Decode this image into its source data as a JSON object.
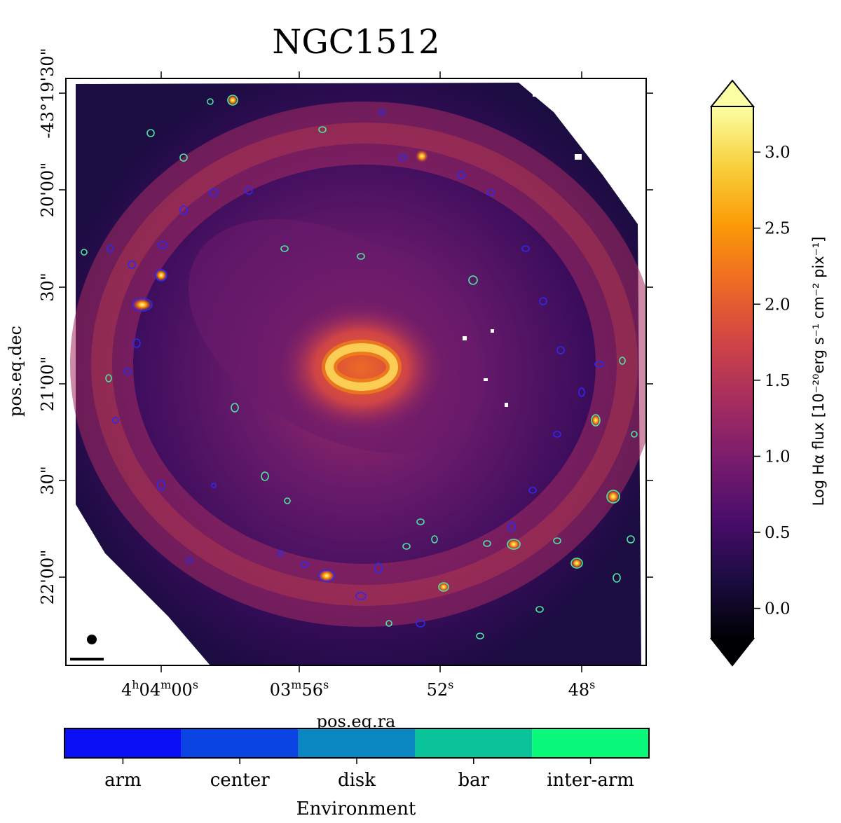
{
  "title": "NGC1512",
  "axes": {
    "xlabel": "pos.eq.ra",
    "ylabel": "pos.eq.dec",
    "ra_ticks": [
      {
        "main": "4",
        "sup1": "h",
        "mid": "04",
        "sup2": "m",
        "end": "00",
        "sup3": "s"
      },
      {
        "main": "03",
        "sup1": "m",
        "mid": "56",
        "sup2": "s"
      },
      {
        "main": "52",
        "sup1": "s"
      },
      {
        "main": "48",
        "sup1": "s"
      }
    ],
    "dec_ticks": [
      "-43°19'30\"",
      "20'00\"",
      "30\"",
      "21'00\"",
      "30\"",
      "22'00\""
    ]
  },
  "colorbar": {
    "label": "Log Hα flux [10⁻²⁰erg s⁻¹ cm⁻² pix⁻¹]",
    "ticks": [
      "3.0",
      "2.5",
      "2.0",
      "1.5",
      "1.0",
      "0.5",
      "0.0"
    ],
    "tick_values": [
      3.0,
      2.5,
      2.0,
      1.5,
      1.0,
      0.5,
      0.0
    ],
    "range": [
      -0.2,
      3.3
    ],
    "extend": "both",
    "cmap": [
      "#000004",
      "#1b0c41",
      "#4a0c6b",
      "#781c6d",
      "#a52c60",
      "#cf4446",
      "#ed6925",
      "#fb9b06",
      "#f7d13d",
      "#fcffa4"
    ]
  },
  "environment_legend": {
    "label": "Environment",
    "categories": [
      {
        "name": "arm",
        "color": "#0a0ff5"
      },
      {
        "name": "center",
        "color": "#0a44e2"
      },
      {
        "name": "disk",
        "color": "#0a86c0"
      },
      {
        "name": "bar",
        "color": "#0ac39b"
      },
      {
        "name": "inter-arm",
        "color": "#0af97a"
      }
    ]
  }
}
